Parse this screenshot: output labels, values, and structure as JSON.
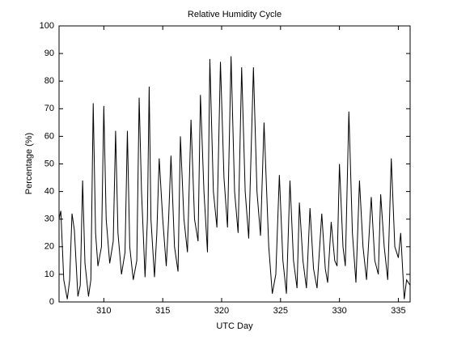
{
  "chart_data": {
    "type": "line",
    "title": "Relative Humidity Cycle",
    "x_label": "UTC Day",
    "y_label": "Percentage (%)",
    "x": [
      306.2,
      306.35,
      306.6,
      306.9,
      307.1,
      307.3,
      307.5,
      307.8,
      308.0,
      308.2,
      308.4,
      308.7,
      308.9,
      309.1,
      309.3,
      309.5,
      309.8,
      310.0,
      310.2,
      310.5,
      310.8,
      311.0,
      311.2,
      311.5,
      311.8,
      312.0,
      312.2,
      312.5,
      312.8,
      313.0,
      313.2,
      313.5,
      313.7,
      313.85,
      314.0,
      314.3,
      314.5,
      314.7,
      315.0,
      315.3,
      315.5,
      315.7,
      316.0,
      316.3,
      316.5,
      316.8,
      317.1,
      317.4,
      317.7,
      318.0,
      318.2,
      318.5,
      318.8,
      319.0,
      319.3,
      319.6,
      319.9,
      320.2,
      320.5,
      320.8,
      321.1,
      321.4,
      321.7,
      322.0,
      322.3,
      322.7,
      323.0,
      323.3,
      323.6,
      324.0,
      324.3,
      324.6,
      324.9,
      325.2,
      325.5,
      325.8,
      326.1,
      326.4,
      326.6,
      326.9,
      327.2,
      327.5,
      327.8,
      328.1,
      328.5,
      328.8,
      329.0,
      329.3,
      329.6,
      329.8,
      330.0,
      330.3,
      330.5,
      330.8,
      331.1,
      331.4,
      331.7,
      332.0,
      332.3,
      332.7,
      333.0,
      333.3,
      333.5,
      333.8,
      334.1,
      334.4,
      334.7,
      335.0,
      335.2,
      335.5,
      335.7,
      336.0
    ],
    "series": [
      {
        "name": "Relative Humidity",
        "color": "#000000",
        "values": [
          30,
          33,
          8,
          1,
          8,
          32,
          26,
          2,
          6,
          44,
          14,
          2,
          8,
          72,
          25,
          13,
          20,
          71,
          30,
          14,
          22,
          62,
          25,
          10,
          18,
          62,
          20,
          8,
          15,
          74,
          40,
          9,
          30,
          78,
          30,
          9,
          25,
          52,
          30,
          13,
          30,
          53,
          20,
          11,
          60,
          30,
          18,
          66,
          30,
          22,
          75,
          40,
          18,
          88,
          40,
          27,
          87,
          45,
          27,
          89,
          40,
          25,
          85,
          40,
          23,
          85,
          40,
          24,
          65,
          20,
          3,
          10,
          46,
          15,
          3,
          44,
          15,
          5,
          36,
          15,
          5,
          34,
          12,
          5,
          32,
          12,
          7,
          29,
          15,
          13,
          50,
          20,
          13,
          69,
          25,
          7,
          44,
          20,
          8,
          38,
          15,
          10,
          39,
          20,
          8,
          52,
          20,
          16,
          25,
          1,
          8,
          6
        ]
      }
    ],
    "xlim": [
      306.2,
      336
    ],
    "xticks": [
      310,
      315,
      320,
      325,
      330,
      335
    ],
    "ylim": [
      0,
      100
    ],
    "yticks": [
      0,
      10,
      20,
      30,
      40,
      50,
      60,
      70,
      80,
      90,
      100
    ]
  }
}
